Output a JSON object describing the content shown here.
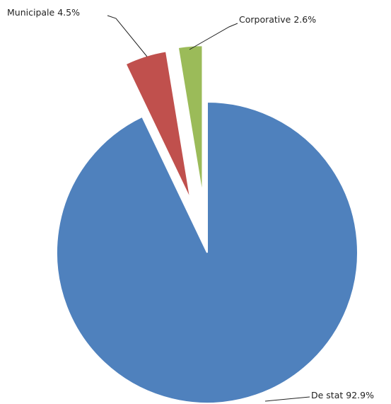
{
  "chart_data": {
    "type": "pie",
    "categories": [
      "De stat",
      "Municipale",
      "Corporative"
    ],
    "values": [
      92.9,
      4.5,
      2.6
    ],
    "value_labels": [
      "92.9%",
      "4.5%",
      "2.6%"
    ],
    "colors": [
      "#4f81bd",
      "#c0504d",
      "#9bbb59"
    ]
  }
}
